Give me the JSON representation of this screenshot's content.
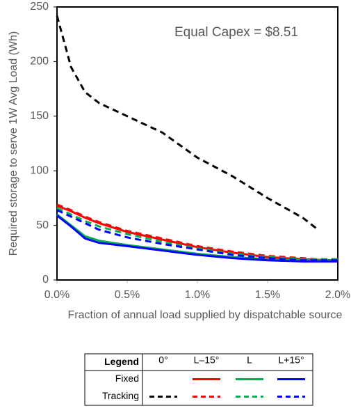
{
  "chart_data": {
    "type": "line",
    "annotation": "Equal Capex = $8.51",
    "x_label": "Fraction of annual load supplied by dispatchable source",
    "y_label": "Required storage to serve 1W Avg Load (Wh)",
    "x": [
      0,
      0.1,
      0.2,
      0.3,
      0.5,
      0.75,
      1.0,
      1.25,
      1.5,
      1.75,
      1.85,
      2.0
    ],
    "xlim": [
      0,
      2
    ],
    "xticks": [
      {
        "value": 0,
        "label": "0.0%"
      },
      {
        "value": 0.5,
        "label": "0.5%"
      },
      {
        "value": 1,
        "label": "1.0%"
      },
      {
        "value": 1.5,
        "label": "1.5%"
      },
      {
        "value": 2,
        "label": "2.0%"
      }
    ],
    "ylim": [
      0,
      250
    ],
    "yticks": [
      0,
      50,
      100,
      150,
      200,
      250
    ],
    "legend_title": "Legend",
    "legend_columns": [
      "0°",
      "L–15°",
      "L",
      "L+15°"
    ],
    "groups": [
      {
        "name": "Fixed",
        "dashed": false,
        "lines": [
          null,
          {
            "color": "#ff0000",
            "values": [
              68,
              63,
              57,
              52,
              44,
              37,
              30,
              25,
              21,
              19,
              18.5,
              18
            ]
          },
          {
            "color": "#00b050",
            "values": [
              60,
              50,
              40,
              36,
              32,
              28,
              24,
              21,
              19,
              18,
              18,
              18
            ]
          },
          {
            "color": "#0000ff",
            "values": [
              59,
              49,
              38,
              34,
              31,
              27,
              23,
              20,
              18,
              17,
              17,
              17
            ]
          }
        ]
      },
      {
        "name": "Tracking",
        "dashed": true,
        "lines": [
          {
            "color": "#000000",
            "values": [
              242,
              195,
              172,
              162,
              150,
              135,
              112,
              95,
              75,
              57,
              47,
              null
            ]
          },
          {
            "color": "#ff0000",
            "values": [
              69,
              64,
              58,
              53,
              45,
              38,
              31,
              26,
              22,
              20,
              19,
              19
            ]
          },
          {
            "color": "#00b050",
            "values": [
              66,
              60,
              54,
              49,
              42,
              35,
              29,
              24,
              21,
              19,
              19,
              19
            ]
          },
          {
            "color": "#0000ff",
            "values": [
              64,
              58,
              52,
              46,
              39,
              33,
              28,
              23,
              20,
              18,
              18,
              18
            ]
          }
        ]
      }
    ]
  }
}
